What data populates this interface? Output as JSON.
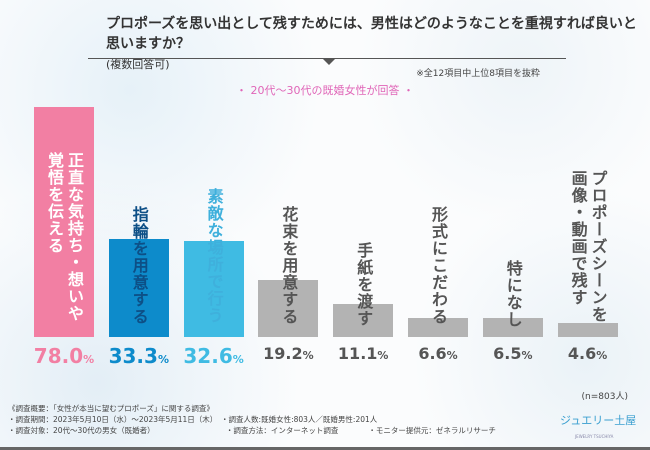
{
  "chart_data": {
    "type": "bar",
    "title": "プロポーズを思い出として残すためには、男性はどのようなことを重視すれば良いと思いますか？",
    "title_suffix": "(複数回答可)",
    "note": "※全12項目中上位8項目を抜粋",
    "subtitle": "・ 20代〜30代の既婚女性が回答 ・",
    "categories": [
      "正直な気持ち・想いや 覚悟を伝える",
      "指輪を用意する",
      "素敵な場所で行う",
      "花束を用意する",
      "手紙を渡す",
      "形式にこだわる",
      "特になし",
      "プロポーズシーンを 画像・動画で残す"
    ],
    "values": [
      78.0,
      33.3,
      32.6,
      19.2,
      11.1,
      6.6,
      6.5,
      4.6
    ],
    "value_labels": [
      "78.0",
      "33.3",
      "32.6",
      "19.2",
      "11.1",
      "6.6",
      "6.5",
      "4.6"
    ],
    "unit": "%",
    "colors": [
      "#f27fa3",
      "#0d8bcb",
      "#3fbbe3",
      "#b3b3b3",
      "#b3b3b3",
      "#b3b3b3",
      "#b3b3b3",
      "#b3b3b3"
    ],
    "label_colors": [
      "#ffffff",
      "#0d4f86",
      "#3fb0dc",
      "#555555",
      "#555555",
      "#555555",
      "#555555",
      "#555555"
    ],
    "value_colors": [
      "#f27fa3",
      "#0d8bcb",
      "#3fbbe3",
      "#555555",
      "#555555",
      "#555555",
      "#555555",
      "#555555"
    ],
    "sample": "(n=803人)",
    "ylim": [
      0,
      80
    ]
  },
  "footer": {
    "lines": [
      "《調査概要：「女性が本当に望むプロポーズ」に関する調査》",
      "・調査期間：2023年5月10日（水）〜2023年5月11日（木）　・調査人数:既婚女性:803人／既婚男性:201人",
      "・調査対象：20代〜30代の男女（既婚者）　　　　　　　　　　・調査方法：インターネット調査　　　　・モニター提供元：ゼネラルリサーチ"
    ]
  },
  "logo": {
    "text": "ジュエリー土屋",
    "sub": "JEWELRY TSUCHIYA"
  }
}
